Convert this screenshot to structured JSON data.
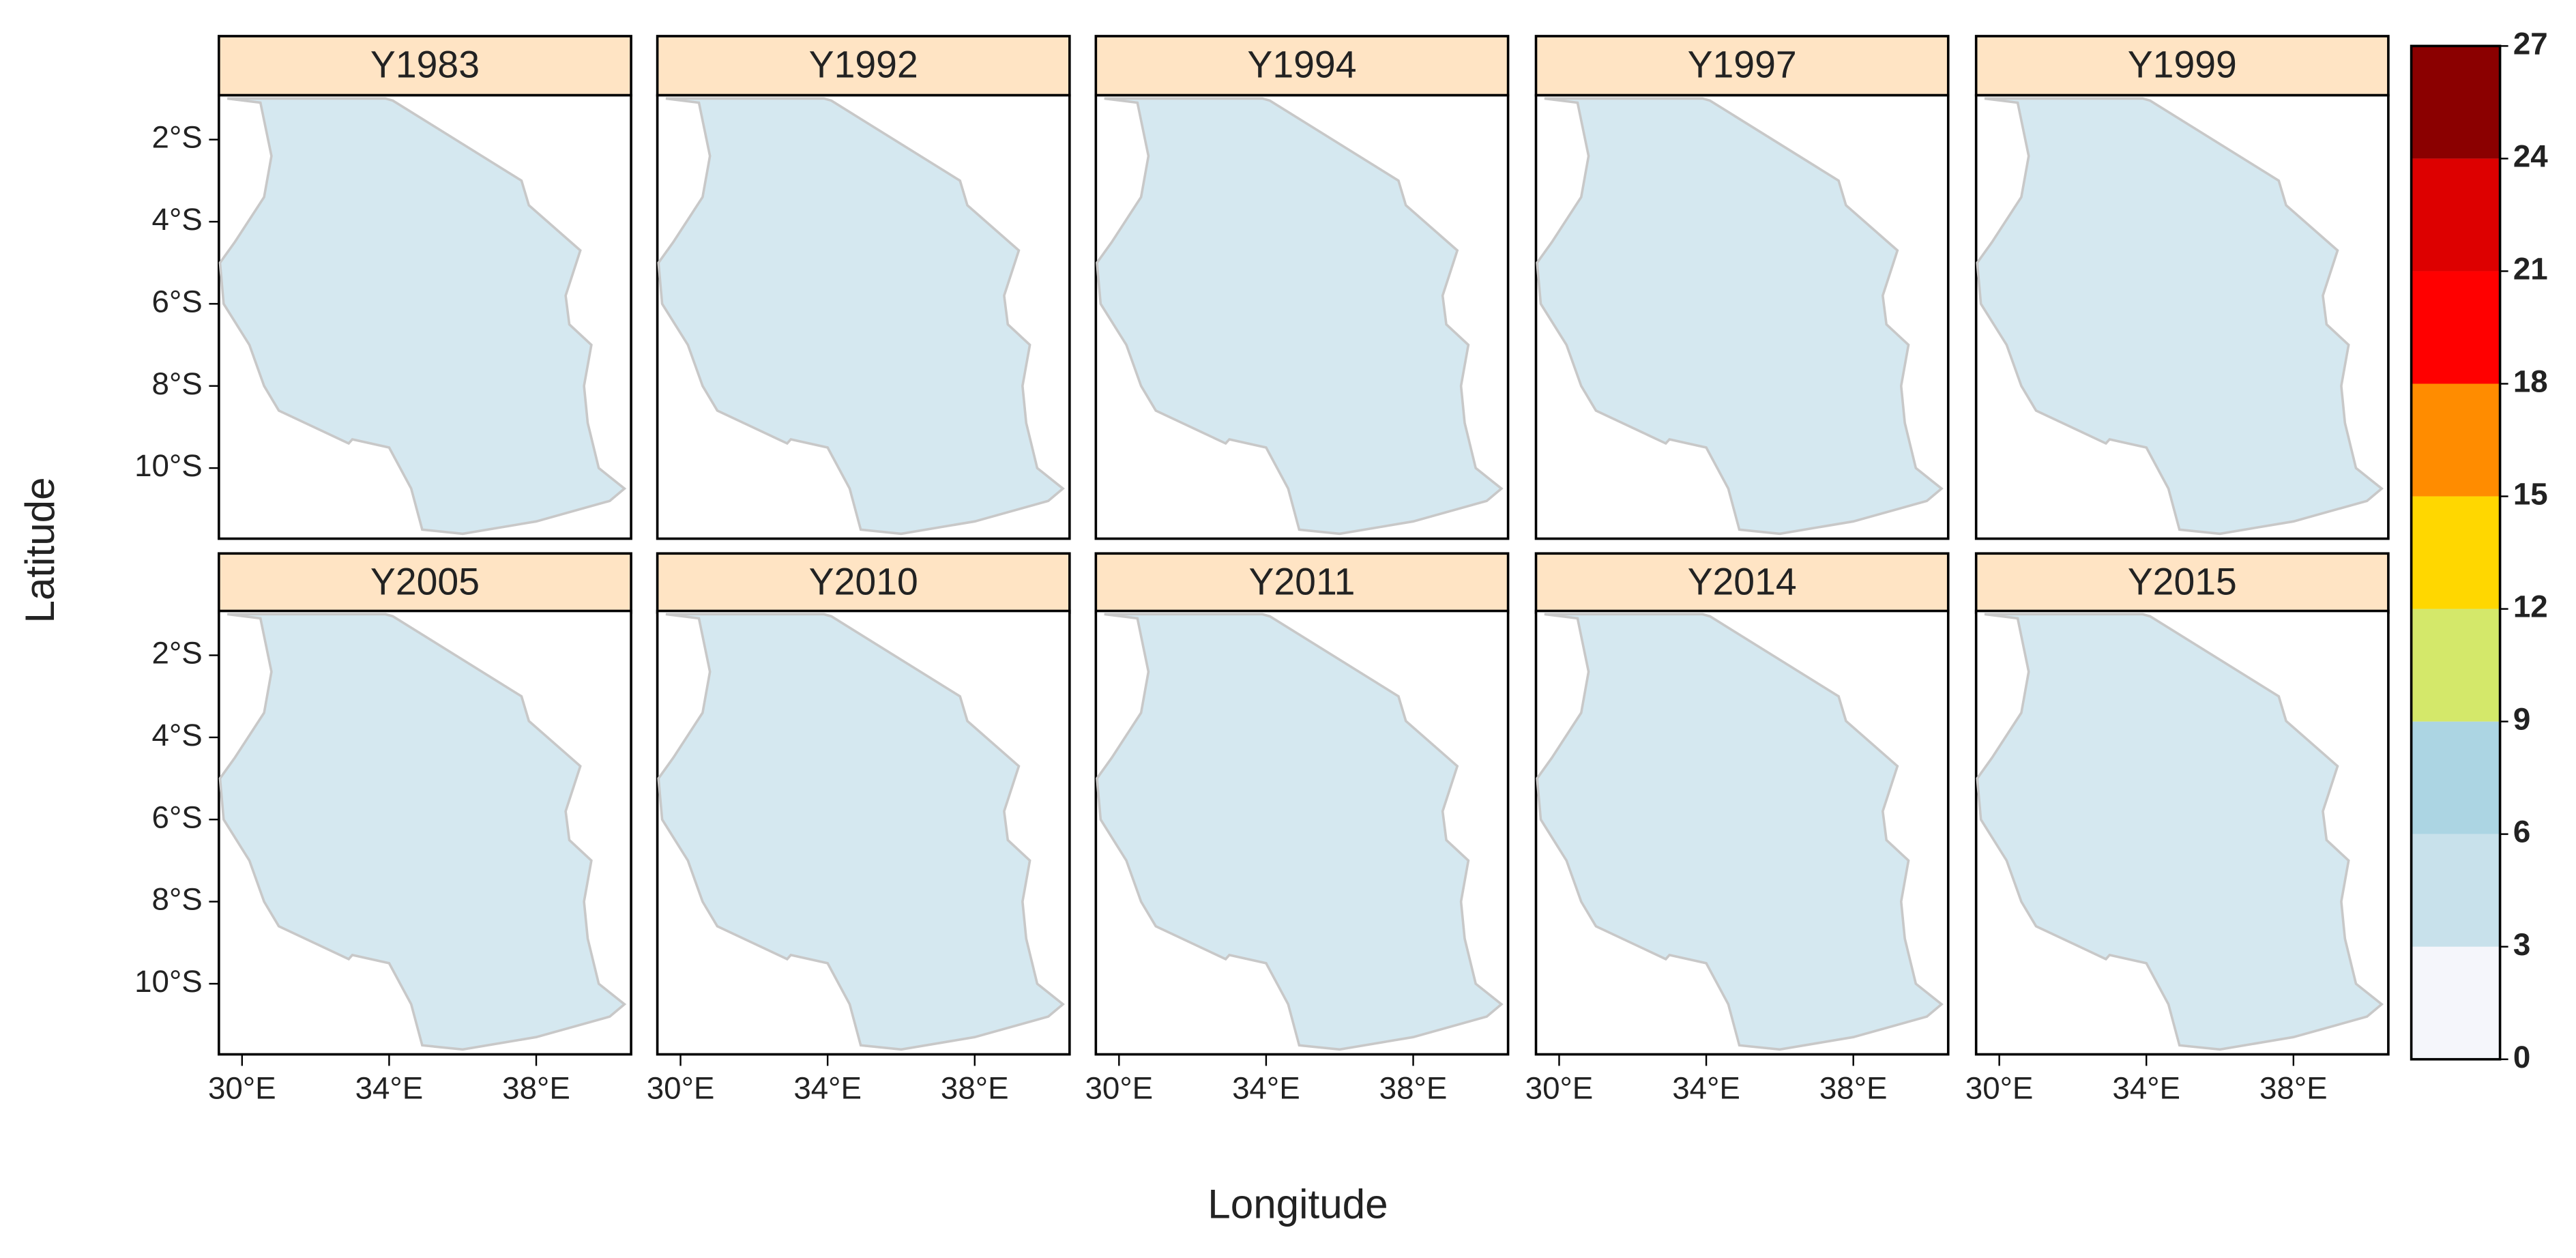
{
  "chart_data": {
    "type": "raster",
    "panels": [
      "Y1983",
      "Y1992",
      "Y1994",
      "Y1997",
      "Y1999",
      "Y2005",
      "Y2010",
      "Y2011",
      "Y2014",
      "Y2015"
    ],
    "x_label": "Longitude",
    "y_label": "Latitude",
    "xlim": [
      29.37,
      40.58
    ],
    "ylim": [
      -11.72,
      -0.92
    ],
    "xticks": [
      {
        "value": 30,
        "label": "30°E"
      },
      {
        "value": 34,
        "label": "34°E"
      },
      {
        "value": 38,
        "label": "38°E"
      }
    ],
    "yticks": [
      {
        "value": -2,
        "label": "2°S"
      },
      {
        "value": -4,
        "label": "4°S"
      },
      {
        "value": -6,
        "label": "6°S"
      },
      {
        "value": -8,
        "label": "8°S"
      },
      {
        "value": -10,
        "label": "10°S"
      }
    ],
    "strip_color": "#ffe4c4",
    "colorbar": {
      "breaks": [
        0,
        3,
        6,
        9,
        12,
        15,
        18,
        21,
        24,
        27
      ],
      "colors": [
        "#f5f6fb",
        "#c8e1eb",
        "#acd5e3",
        "#d4e86a",
        "#ffd700",
        "#ff8c00",
        "#ff0000",
        "#dd0000",
        "#8b0000"
      ]
    }
  }
}
